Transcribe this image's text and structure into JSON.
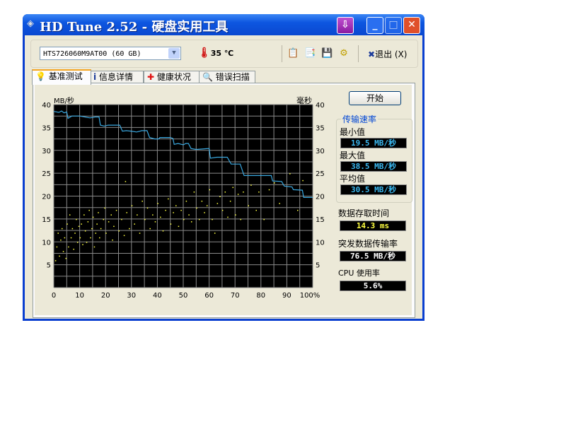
{
  "window": {
    "title": "HD Tune 2.52 - 硬盘实用工具"
  },
  "toolbar": {
    "drive": "HTS726060M9AT00 (60 GB)",
    "temperature": "35 ℃",
    "exit_label": "退出 (X)",
    "icons": [
      "copy-text-icon",
      "copy-info-icon",
      "save-icon",
      "options-icon"
    ]
  },
  "tabs": [
    {
      "label": "基准测试",
      "icon": "bulb-icon"
    },
    {
      "label": "信息详情",
      "icon": "info-icon"
    },
    {
      "label": "健康状况",
      "icon": "health-cross-icon"
    },
    {
      "label": "错误扫描",
      "icon": "magnifier-icon"
    }
  ],
  "side": {
    "start_label": "开始",
    "group_title": "传输速率",
    "min_label": "最小值",
    "min_value": "19.5 MB/秒",
    "max_label": "最大值",
    "max_value": "38.5 MB/秒",
    "avg_label": "平均值",
    "avg_value": "30.5 MB/秒",
    "access_label": "数据存取时间",
    "access_value": "14.3 ms",
    "burst_label": "突发数据传输率",
    "burst_value": "76.5 MB/秒",
    "cpu_label": "CPU 使用率",
    "cpu_value": "5.6%"
  },
  "colors": {
    "transfer": "#3aa8e0",
    "access": "#ffff40",
    "value_text": "#3ab8f0",
    "access_text": "#ffff40",
    "burst_text": "#ffffff"
  },
  "chart_data": {
    "type": "line",
    "ylabel_left": "MB/秒",
    "ylabel_right": "毫秒",
    "xlim": [
      0,
      100
    ],
    "ylim": [
      0,
      40
    ],
    "x_ticks": [
      "0",
      "10",
      "20",
      "30",
      "40",
      "50",
      "60",
      "70",
      "80",
      "90",
      "100%"
    ],
    "y_ticks": [
      "5",
      "10",
      "15",
      "20",
      "25",
      "30",
      "35",
      "40"
    ],
    "grid": true,
    "series": [
      {
        "kind": "line",
        "x": [
          0,
          2,
          3,
          4,
          5,
          5.5,
          7,
          10,
          12,
          14,
          16,
          17.5,
          18,
          19.5,
          21,
          25.5,
          26.5,
          28,
          30,
          32,
          34,
          36,
          37,
          39,
          40.5,
          41,
          45,
          46,
          46.5,
          48,
          50,
          51,
          52,
          53,
          55,
          60,
          60.5,
          63,
          67,
          68.5,
          72,
          73.5,
          80,
          84,
          84.5,
          88,
          89,
          92,
          92.5,
          96,
          96.5,
          100
        ],
        "y": [
          38.5,
          38.3,
          38.6,
          38.2,
          38.4,
          37,
          37.5,
          37.5,
          37.3,
          37.1,
          37.3,
          37.3,
          35.5,
          35.3,
          35.5,
          35.5,
          34.2,
          34.3,
          34.2,
          34,
          34.3,
          34.3,
          32.8,
          32.5,
          32.5,
          32.8,
          32.8,
          32.6,
          31.3,
          31.5,
          31.2,
          31.5,
          31.5,
          30.4,
          30.2,
          30.4,
          28.3,
          28.5,
          28.5,
          27,
          27,
          24.5,
          24.5,
          24.5,
          23.3,
          23.2,
          22.2,
          22,
          21.4,
          21.3,
          19.7,
          19.7
        ]
      },
      {
        "kind": "scatter",
        "points": [
          [
            0.5,
            6
          ],
          [
            1,
            9
          ],
          [
            1.5,
            12
          ],
          [
            2,
            7
          ],
          [
            2.5,
            10.5
          ],
          [
            3,
            13
          ],
          [
            3.5,
            8
          ],
          [
            4,
            11
          ],
          [
            4.5,
            6.5
          ],
          [
            5,
            14
          ],
          [
            5.5,
            9
          ],
          [
            6,
            16
          ],
          [
            6.5,
            11
          ],
          [
            7,
            13
          ],
          [
            7.5,
            8.5
          ],
          [
            8,
            12
          ],
          [
            8.5,
            15
          ],
          [
            9,
            10
          ],
          [
            9.5,
            13.5
          ],
          [
            10,
            11
          ],
          [
            10.5,
            14
          ],
          [
            11,
            9.5
          ],
          [
            11.5,
            16
          ],
          [
            12,
            12.5
          ],
          [
            12.5,
            10
          ],
          [
            13,
            14.5
          ],
          [
            13.5,
            17
          ],
          [
            14,
            11
          ],
          [
            14.5,
            13
          ],
          [
            15,
            15.5
          ],
          [
            15.5,
            9
          ],
          [
            16,
            12
          ],
          [
            16.5,
            14
          ],
          [
            17,
            16.5
          ],
          [
            17.5,
            11
          ],
          [
            18,
            13
          ],
          [
            19,
            15
          ],
          [
            19.5,
            17.5
          ],
          [
            20,
            12
          ],
          [
            21,
            14.5
          ],
          [
            22,
            16
          ],
          [
            22.5,
            10.5
          ],
          [
            23,
            13.5
          ],
          [
            24,
            17
          ],
          [
            25,
            12.5
          ],
          [
            26,
            15
          ],
          [
            27,
            11.5
          ],
          [
            27.5,
            23.3
          ],
          [
            28,
            16.5
          ],
          [
            29,
            13
          ],
          [
            30,
            18
          ],
          [
            31,
            14
          ],
          [
            32,
            16
          ],
          [
            33,
            12
          ],
          [
            34,
            19
          ],
          [
            35,
            15
          ],
          [
            36,
            17.5
          ],
          [
            37,
            13
          ],
          [
            38,
            16
          ],
          [
            39,
            14.5
          ],
          [
            40,
            18.5
          ],
          [
            41,
            15.5
          ],
          [
            42,
            12.5
          ],
          [
            43,
            17
          ],
          [
            44,
            19.5
          ],
          [
            45,
            14
          ],
          [
            46,
            16.5
          ],
          [
            47,
            18
          ],
          [
            48,
            13.5
          ],
          [
            49,
            17
          ],
          [
            50,
            15
          ],
          [
            51,
            19
          ],
          [
            52,
            16
          ],
          [
            53,
            14.5
          ],
          [
            54,
            21
          ],
          [
            55,
            17.5
          ],
          [
            56,
            15
          ],
          [
            57,
            19
          ],
          [
            58,
            16.5
          ],
          [
            59,
            18
          ],
          [
            60,
            21.5
          ],
          [
            61,
            15
          ],
          [
            62,
            12
          ],
          [
            63,
            18.5
          ],
          [
            64,
            20
          ],
          [
            65,
            17
          ],
          [
            66,
            21
          ],
          [
            67,
            15.5
          ],
          [
            68,
            19
          ],
          [
            69,
            22
          ],
          [
            70,
            16
          ],
          [
            71,
            20.5
          ],
          [
            72,
            15
          ],
          [
            73,
            21
          ],
          [
            75,
            18
          ],
          [
            76,
            22.5
          ],
          [
            78,
            17
          ],
          [
            79,
            21
          ],
          [
            81,
            15
          ],
          [
            83,
            21.5
          ],
          [
            85,
            23
          ],
          [
            87,
            18.5
          ],
          [
            91,
            25
          ],
          [
            94,
            17
          ],
          [
            96,
            23.5
          ]
        ]
      }
    ]
  }
}
